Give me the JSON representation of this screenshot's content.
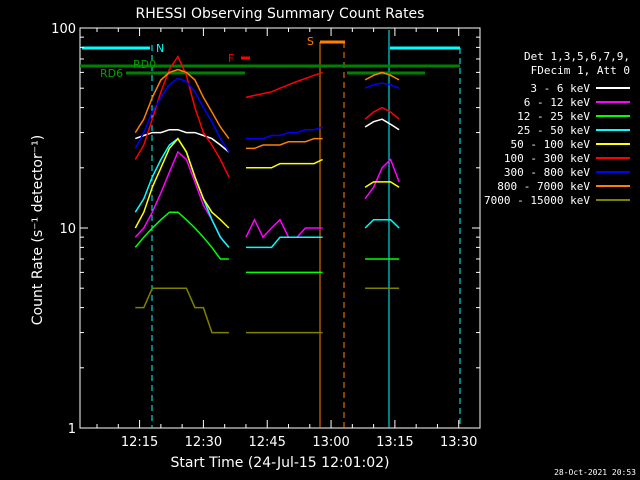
{
  "chart_data": {
    "type": "line",
    "title": "RHESSI Observing Summary Count Rates",
    "xlabel": "Start Time (24-Jul-15 12:01:02)",
    "ylabel": "Count Rate (s⁻¹ detector⁻¹)",
    "y_scale": "log",
    "ylim": [
      1,
      100
    ],
    "xlim_minutes_after_12": [
      1,
      43
    ],
    "x_ticks": [
      "12:15",
      "12:30",
      "12:45",
      "13:00",
      "13:15",
      "13:30"
    ],
    "x_tick_minutes": [
      15,
      30,
      45,
      60,
      75,
      90
    ],
    "y_ticks": [
      "1",
      "10",
      "100"
    ],
    "y_tick_values": [
      1,
      10,
      100
    ],
    "legend_header": [
      "Det 1,3,5,6,7,9,",
      "FDecim 1, Att 0"
    ],
    "legend_position": "right",
    "timestamp": "28-Oct-2021 20:53",
    "annotations": {
      "night": "N",
      "saa": "S",
      "flare": "F",
      "rd0": "RD0",
      "rd6": "RD6"
    },
    "x": [
      13,
      14,
      16,
      18,
      20,
      22,
      24,
      26,
      28,
      30,
      32,
      34,
      36,
      38,
      40,
      42,
      44,
      46,
      48,
      50,
      52,
      54,
      56,
      58,
      60,
      62,
      64,
      66,
      68,
      70,
      72,
      74,
      76
    ],
    "series": [
      {
        "name": "3 - 6 keV",
        "color": "#ffffff",
        "values": [
          null,
          28,
          29,
          30,
          30,
          31,
          31,
          30,
          30,
          29,
          28,
          26,
          24,
          null,
          null,
          null,
          null,
          null,
          null,
          null,
          null,
          null,
          null,
          null,
          null,
          null,
          null,
          null,
          32,
          34,
          35,
          33,
          31
        ]
      },
      {
        "name": "6 - 12 keV",
        "color": "#ff00ff",
        "values": [
          null,
          9,
          10,
          12,
          15,
          19,
          24,
          22,
          17,
          13,
          11,
          9,
          8,
          null,
          9,
          11,
          9,
          10,
          11,
          9,
          9,
          10,
          10,
          10,
          null,
          null,
          null,
          null,
          14,
          16,
          20,
          22,
          17
        ]
      },
      {
        "name": "12 - 25 keV",
        "color": "#00ff00",
        "values": [
          null,
          8,
          9,
          10,
          11,
          12,
          12,
          11,
          10,
          9,
          8,
          7,
          7,
          null,
          6,
          6,
          6,
          6,
          6,
          6,
          6,
          6,
          6,
          6,
          null,
          null,
          null,
          null,
          7,
          7,
          7,
          7,
          7
        ]
      },
      {
        "name": "25 - 50 keV",
        "color": "#00ffff",
        "values": [
          null,
          12,
          14,
          18,
          22,
          26,
          28,
          24,
          18,
          14,
          11,
          9,
          8,
          null,
          8,
          8,
          8,
          8,
          9,
          9,
          9,
          9,
          9,
          9,
          null,
          null,
          null,
          null,
          10,
          11,
          11,
          11,
          10
        ]
      },
      {
        "name": "50 - 100 keV",
        "color": "#ffff00",
        "values": [
          null,
          10,
          12,
          16,
          20,
          25,
          28,
          24,
          18,
          14,
          12,
          11,
          10,
          null,
          20,
          20,
          20,
          20,
          21,
          21,
          21,
          21,
          21,
          22,
          null,
          null,
          null,
          null,
          16,
          17,
          17,
          17,
          16
        ]
      },
      {
        "name": "100 - 300 keV",
        "color": "#ff0000",
        "values": [
          null,
          22,
          26,
          35,
          48,
          62,
          72,
          58,
          40,
          30,
          26,
          22,
          18,
          null,
          45,
          46,
          47,
          48,
          50,
          52,
          54,
          56,
          58,
          60,
          null,
          null,
          null,
          null,
          35,
          38,
          40,
          38,
          35
        ]
      },
      {
        "name": "300 - 800 keV",
        "color": "#0000ff",
        "values": [
          null,
          25,
          30,
          38,
          45,
          52,
          56,
          54,
          48,
          40,
          34,
          28,
          24,
          null,
          28,
          28,
          28,
          29,
          29,
          30,
          30,
          31,
          31,
          32,
          null,
          null,
          null,
          null,
          50,
          52,
          53,
          52,
          50
        ]
      },
      {
        "name": "800 - 7000 keV",
        "color": "#ff8000",
        "values": [
          null,
          30,
          35,
          45,
          55,
          60,
          62,
          60,
          55,
          45,
          38,
          32,
          28,
          null,
          25,
          25,
          26,
          26,
          26,
          27,
          27,
          27,
          28,
          28,
          null,
          null,
          null,
          null,
          55,
          58,
          60,
          58,
          55
        ]
      },
      {
        "name": "7000 - 15000 keV",
        "color": "#808000",
        "values": [
          null,
          4,
          4,
          5,
          5,
          5,
          5,
          5,
          4,
          4,
          3,
          3,
          3,
          null,
          3,
          3,
          3,
          3,
          3,
          3,
          3,
          3,
          3,
          3,
          null,
          null,
          null,
          null,
          5,
          5,
          5,
          5,
          5
        ]
      }
    ]
  }
}
